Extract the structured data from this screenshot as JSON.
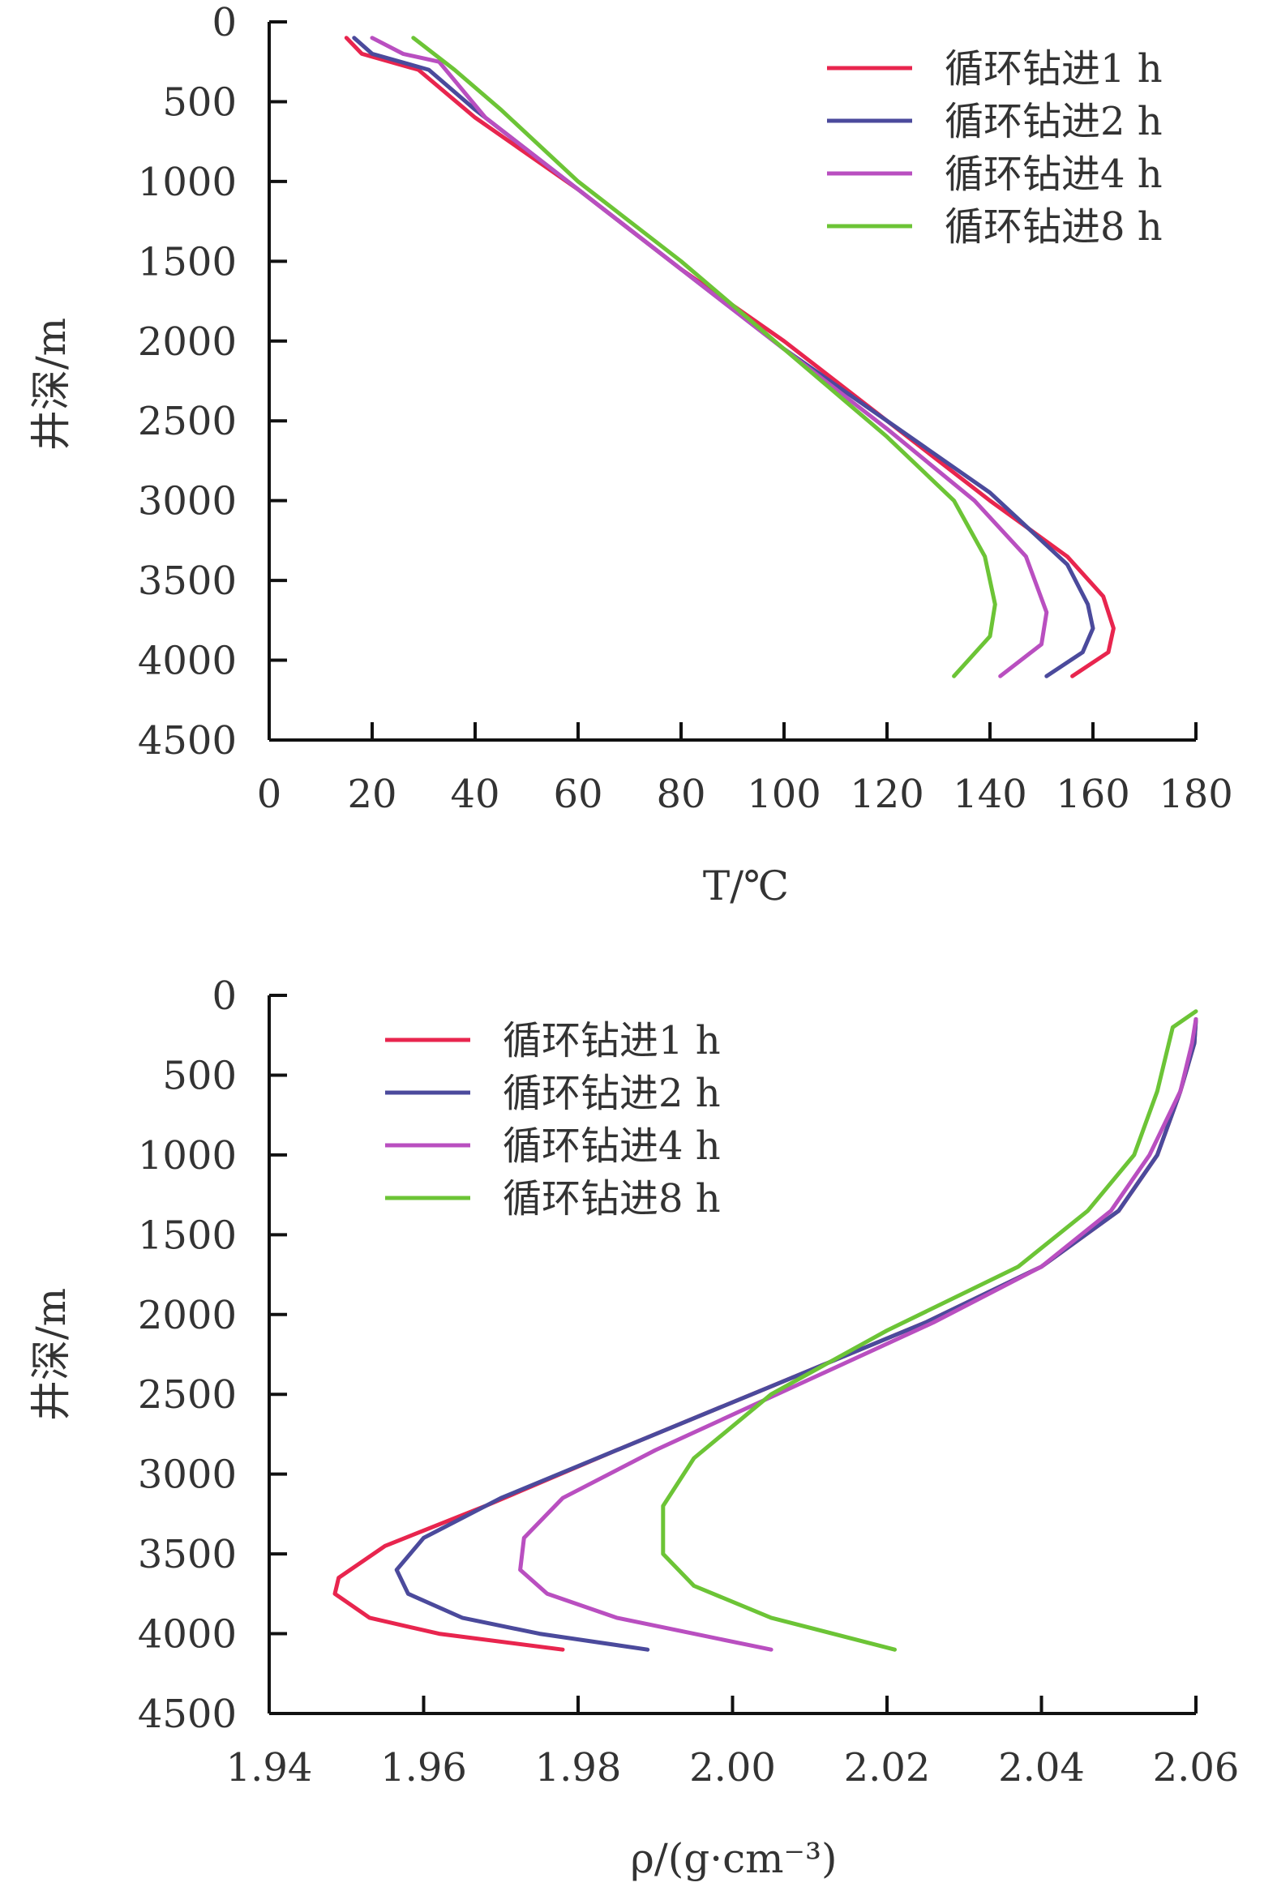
{
  "chart_data": [
    {
      "type": "line",
      "xlabel": "T/℃",
      "ylabel": "井深/m",
      "xlim": [
        0,
        180
      ],
      "ylim": [
        4500,
        0
      ],
      "x_ticks": [
        "0",
        "20",
        "40",
        "60",
        "80",
        "100",
        "120",
        "140",
        "160",
        "180"
      ],
      "y_ticks": [
        "0",
        "500",
        "1000",
        "1500",
        "2000",
        "2500",
        "3000",
        "3500",
        "4000",
        "4500"
      ],
      "legend_position": "top-right",
      "series": [
        {
          "name": "循环钻进1 h",
          "color": "#e8254e",
          "points": [
            [
              15,
              100
            ],
            [
              18,
              200
            ],
            [
              29,
              300
            ],
            [
              40,
              600
            ],
            [
              60,
              1050
            ],
            [
              80,
              1550
            ],
            [
              100,
              2000
            ],
            [
              120,
              2500
            ],
            [
              140,
              3000
            ],
            [
              155,
              3350
            ],
            [
              162,
              3600
            ],
            [
              164,
              3800
            ],
            [
              163,
              3950
            ],
            [
              156,
              4100
            ]
          ]
        },
        {
          "name": "循环钻进2 h",
          "color": "#4b4a9c",
          "points": [
            [
              16.5,
              100
            ],
            [
              20,
              200
            ],
            [
              31,
              300
            ],
            [
              40,
              550
            ],
            [
              60,
              1050
            ],
            [
              80,
              1550
            ],
            [
              100,
              2050
            ],
            [
              120,
              2500
            ],
            [
              140,
              2950
            ],
            [
              155,
              3400
            ],
            [
              159,
              3650
            ],
            [
              160,
              3800
            ],
            [
              158,
              3950
            ],
            [
              151,
              4100
            ]
          ]
        },
        {
          "name": "循环钻进4 h",
          "color": "#b94fc0",
          "points": [
            [
              20,
              100
            ],
            [
              26,
              200
            ],
            [
              33,
              250
            ],
            [
              42,
              600
            ],
            [
              60,
              1050
            ],
            [
              80,
              1550
            ],
            [
              100,
              2050
            ],
            [
              120,
              2550
            ],
            [
              137,
              3000
            ],
            [
              147,
              3350
            ],
            [
              151,
              3700
            ],
            [
              150,
              3900
            ],
            [
              142,
              4100
            ]
          ]
        },
        {
          "name": "循环钻进8 h",
          "color": "#6cc436",
          "points": [
            [
              28,
              100
            ],
            [
              36,
              300
            ],
            [
              45,
              550
            ],
            [
              60,
              1000
            ],
            [
              80,
              1500
            ],
            [
              100,
              2050
            ],
            [
              120,
              2600
            ],
            [
              133,
              3000
            ],
            [
              139,
              3350
            ],
            [
              141,
              3650
            ],
            [
              140,
              3850
            ],
            [
              133,
              4100
            ]
          ]
        }
      ]
    },
    {
      "type": "line",
      "xlabel": "ρ/(g·cm⁻³)",
      "ylabel": "井深/m",
      "xlim": [
        1.94,
        2.06
      ],
      "ylim": [
        4500,
        0
      ],
      "x_ticks": [
        "1.94",
        "1.96",
        "1.98",
        "2.00",
        "2.02",
        "2.04",
        "2.06"
      ],
      "y_ticks": [
        "0",
        "500",
        "1000",
        "1500",
        "2000",
        "2500",
        "3000",
        "3500",
        "4000",
        "4500"
      ],
      "legend_position": "top-left",
      "series": [
        {
          "name": "循环钻进1 h",
          "color": "#e8254e",
          "points": [
            [
              2.06,
              150
            ],
            [
              2.0598,
              300
            ],
            [
              2.058,
              600
            ],
            [
              2.055,
              1000
            ],
            [
              2.05,
              1350
            ],
            [
              2.04,
              1700
            ],
            [
              2.025,
              2050
            ],
            [
              2.005,
              2450
            ],
            [
              1.985,
              2850
            ],
            [
              1.968,
              3200
            ],
            [
              1.955,
              3450
            ],
            [
              1.949,
              3650
            ],
            [
              1.9485,
              3750
            ],
            [
              1.95,
              3800
            ],
            [
              1.953,
              3900
            ],
            [
              1.962,
              4000
            ],
            [
              1.978,
              4100
            ]
          ]
        },
        {
          "name": "循环钻进2 h",
          "color": "#4b4a9c",
          "points": [
            [
              2.06,
              150
            ],
            [
              2.0598,
              300
            ],
            [
              2.058,
              600
            ],
            [
              2.055,
              1000
            ],
            [
              2.05,
              1350
            ],
            [
              2.04,
              1700
            ],
            [
              2.025,
              2050
            ],
            [
              2.005,
              2450
            ],
            [
              1.985,
              2850
            ],
            [
              1.97,
              3150
            ],
            [
              1.96,
              3400
            ],
            [
              1.9565,
              3600
            ],
            [
              1.958,
              3750
            ],
            [
              1.965,
              3900
            ],
            [
              1.975,
              4000
            ],
            [
              1.989,
              4100
            ]
          ]
        },
        {
          "name": "循环钻进4 h",
          "color": "#b94fc0",
          "points": [
            [
              2.06,
              150
            ],
            [
              2.0595,
              300
            ],
            [
              2.058,
              600
            ],
            [
              2.054,
              1000
            ],
            [
              2.049,
              1350
            ],
            [
              2.04,
              1700
            ],
            [
              2.026,
              2050
            ],
            [
              2.008,
              2450
            ],
            [
              1.99,
              2850
            ],
            [
              1.978,
              3150
            ],
            [
              1.973,
              3400
            ],
            [
              1.9725,
              3600
            ],
            [
              1.976,
              3750
            ],
            [
              1.985,
              3900
            ],
            [
              1.995,
              4000
            ],
            [
              2.005,
              4100
            ]
          ]
        },
        {
          "name": "循环钻进8 h",
          "color": "#6cc436",
          "points": [
            [
              2.06,
              100
            ],
            [
              2.057,
              200
            ],
            [
              2.055,
              600
            ],
            [
              2.052,
              1000
            ],
            [
              2.046,
              1350
            ],
            [
              2.037,
              1700
            ],
            [
              2.02,
              2100
            ],
            [
              2.005,
              2500
            ],
            [
              1.995,
              2900
            ],
            [
              1.991,
              3200
            ],
            [
              1.991,
              3500
            ],
            [
              1.995,
              3700
            ],
            [
              2.005,
              3900
            ],
            [
              2.021,
              4100
            ]
          ]
        }
      ]
    }
  ]
}
